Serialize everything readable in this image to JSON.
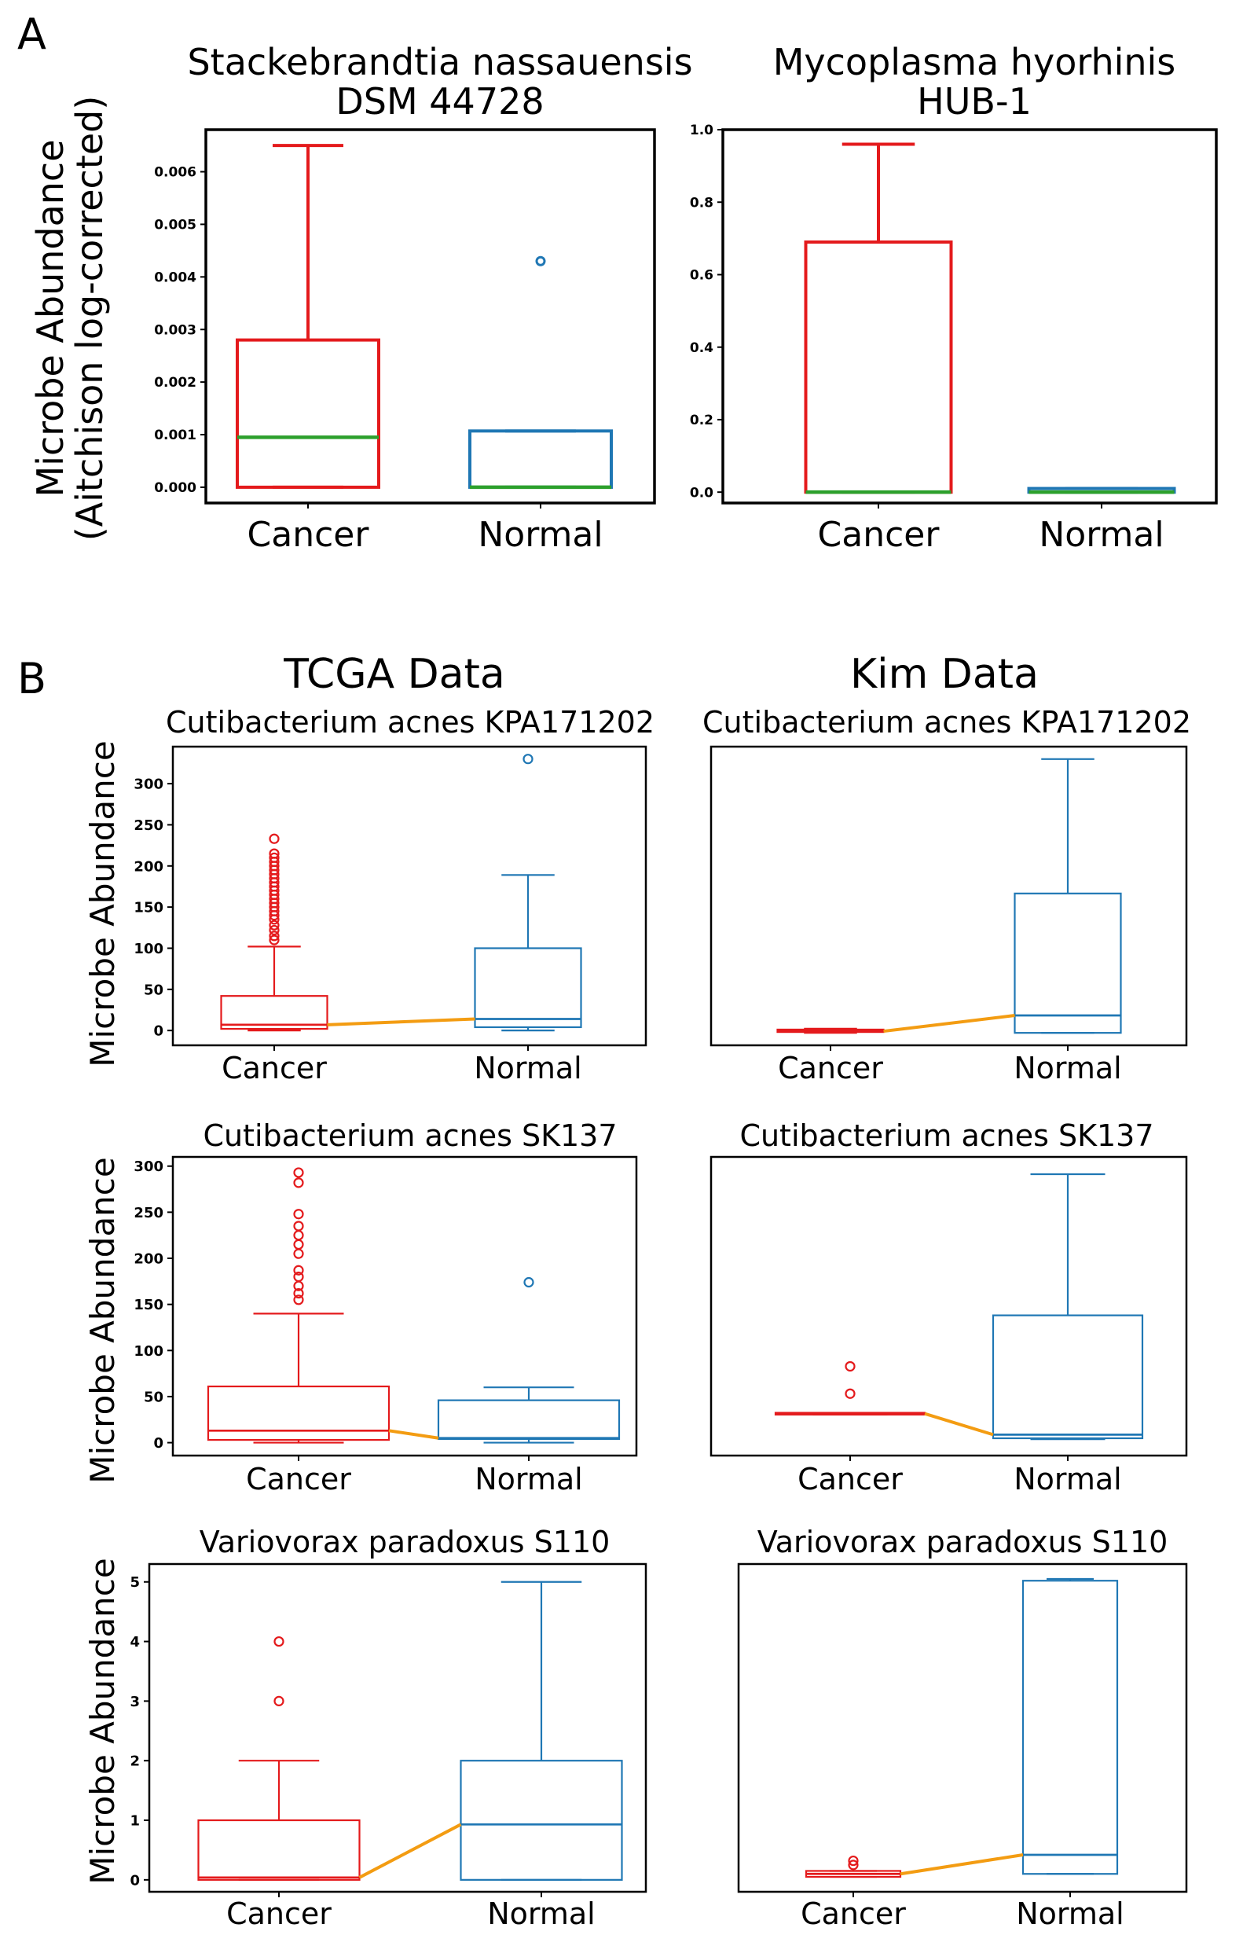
{
  "panel_labels": {
    "a": "A",
    "b": "B"
  },
  "colors": {
    "cancer": "#e41a1c",
    "normal": "#1f77b4",
    "median": "#2ca02c",
    "connector": "#f39c12",
    "tcga": "#1e9a4a",
    "kim": "#f7bcc8"
  },
  "section_headers": {
    "tcga": "TCGA Data",
    "kim": "Kim Data"
  },
  "panel_a_ylabel": [
    "Microbe Abundance",
    "(Aitchison log-corrected)"
  ],
  "panel_b_ylabel": "Microbe Abundance",
  "chart_data": [
    {
      "id": "a1",
      "type": "box",
      "title": [
        "Stackebrandtia nassauensis",
        "DSM 44728"
      ],
      "categories": [
        "Cancer",
        "Normal"
      ],
      "ylim": [
        -0.0003,
        0.0068
      ],
      "yticks": [
        0,
        0.001,
        0.002,
        0.003,
        0.004,
        0.005,
        0.006
      ],
      "tick_labels": [
        "0.000",
        "0.001",
        "0.002",
        "0.003",
        "0.004",
        "0.005",
        "0.006"
      ],
      "boxes": [
        {
          "name": "Cancer",
          "q1": 0,
          "median": 0.00095,
          "q3": 0.0028,
          "whislo": 0,
          "whishi": 0.0065,
          "fliers": []
        },
        {
          "name": "Normal",
          "q1": 0,
          "median": 0,
          "q3": 0.00107,
          "whislo": 0,
          "whishi": 0.00107,
          "fliers": [
            0.0043
          ]
        }
      ],
      "median_color": "green",
      "connector": false
    },
    {
      "id": "a2",
      "type": "box",
      "title": [
        "Mycoplasma hyorhinis",
        "HUB-1"
      ],
      "categories": [
        "Cancer",
        "Normal"
      ],
      "ylim": [
        -0.03,
        1.0
      ],
      "yticks": [
        0,
        0.2,
        0.4,
        0.6,
        0.8,
        1.0
      ],
      "tick_labels": [
        "0.0",
        "0.2",
        "0.4",
        "0.6",
        "0.8",
        "1.0"
      ],
      "boxes": [
        {
          "name": "Cancer",
          "q1": 0,
          "median": 0,
          "q3": 0.69,
          "whislo": 0,
          "whishi": 0.96,
          "fliers": []
        },
        {
          "name": "Normal",
          "q1": 0,
          "median": 0,
          "q3": 0.01,
          "whislo": 0,
          "whishi": 0.01,
          "fliers": []
        }
      ],
      "median_color": "green",
      "connector": false
    },
    {
      "id": "b1",
      "type": "box",
      "title": [
        "Cutibacterium acnes KPA171202"
      ],
      "categories": [
        "Cancer",
        "Normal"
      ],
      "ylim": [
        -18,
        345
      ],
      "yticks": [
        0,
        50,
        100,
        150,
        200,
        250,
        300
      ],
      "tick_labels": [
        "0",
        "50",
        "100",
        "150",
        "200",
        "250",
        "300"
      ],
      "boxes": [
        {
          "name": "Cancer",
          "q1": 2,
          "median": 7,
          "q3": 42,
          "whislo": 0,
          "whishi": 102,
          "fliers": [
            110,
            115,
            122,
            128,
            135,
            140,
            145,
            150,
            155,
            160,
            165,
            170,
            175,
            180,
            185,
            190,
            195,
            200,
            205,
            210,
            215,
            233
          ]
        },
        {
          "name": "Normal",
          "q1": 4,
          "median": 14,
          "q3": 100,
          "whislo": 0,
          "whishi": 189,
          "fliers": [
            330
          ]
        }
      ],
      "median_color": "box",
      "connector": true
    },
    {
      "id": "b2",
      "type": "box",
      "title": [
        "Cutibacterium acnes KPA171202"
      ],
      "categories": [
        "Cancer",
        "Normal"
      ],
      "ylim": [
        -15,
        345
      ],
      "yticks": [],
      "tick_labels": [],
      "boxes": [
        {
          "name": "Cancer",
          "q1": 1,
          "median": 2,
          "q3": 4,
          "whislo": 0,
          "whishi": 5,
          "fliers": []
        },
        {
          "name": "Normal",
          "q1": 0,
          "median": 21,
          "q3": 168,
          "whislo": 0,
          "whishi": 330,
          "fliers": []
        }
      ],
      "median_color": "box",
      "connector": true
    },
    {
      "id": "b3",
      "type": "box",
      "title": [
        "Cutibacterium acnes SK137"
      ],
      "categories": [
        "Cancer",
        "Normal"
      ],
      "ylim": [
        -14,
        310
      ],
      "yticks": [
        0,
        50,
        100,
        150,
        200,
        250,
        300
      ],
      "tick_labels": [
        "0",
        "50",
        "100",
        "150",
        "200",
        "250",
        "300"
      ],
      "boxes": [
        {
          "name": "Cancer",
          "q1": 3,
          "median": 13,
          "q3": 61,
          "whislo": 0,
          "whishi": 140,
          "fliers": [
            155,
            162,
            170,
            180,
            187,
            205,
            215,
            225,
            235,
            248,
            282,
            293
          ]
        },
        {
          "name": "Normal",
          "q1": 4,
          "median": 5,
          "q3": 46,
          "whislo": 0,
          "whishi": 60,
          "fliers": [
            174
          ]
        }
      ],
      "median_color": "box",
      "connector": true
    },
    {
      "id": "b4",
      "type": "box",
      "title": [
        "Cutibacterium acnes SK137"
      ],
      "categories": [
        "Cancer",
        "Normal"
      ],
      "ylim": [
        -18,
        310
      ],
      "yticks": [],
      "tick_labels": [],
      "boxes": [
        {
          "name": "Cancer",
          "q1": 27,
          "median": 28,
          "q3": 29,
          "whislo": 27,
          "whishi": 29,
          "fliers": [
            50,
            80
          ]
        },
        {
          "name": "Normal",
          "q1": 1,
          "median": 5,
          "q3": 136,
          "whislo": 0,
          "whishi": 291,
          "fliers": []
        }
      ],
      "median_color": "box",
      "connector": true
    },
    {
      "id": "b5",
      "type": "box",
      "title": [
        "Variovorax paradoxus S110"
      ],
      "categories": [
        "Cancer",
        "Normal"
      ],
      "ylim": [
        -0.2,
        5.3
      ],
      "yticks": [
        0,
        1,
        2,
        3,
        4,
        5
      ],
      "tick_labels": [
        "0",
        "1",
        "2",
        "3",
        "4",
        "5"
      ],
      "boxes": [
        {
          "name": "Cancer",
          "q1": 0,
          "median": 0.04,
          "q3": 1,
          "whislo": 0,
          "whishi": 2,
          "fliers": [
            3,
            4
          ]
        },
        {
          "name": "Normal",
          "q1": 0,
          "median": 0.93,
          "q3": 2,
          "whislo": 0,
          "whishi": 5,
          "fliers": []
        }
      ],
      "median_color": "box",
      "connector": true
    },
    {
      "id": "b6",
      "type": "box",
      "title": [
        "Variovorax paradoxus S110"
      ],
      "categories": [
        "Cancer",
        "Normal"
      ],
      "ylim": [
        -0.2,
        5.3
      ],
      "yticks": [],
      "tick_labels": [],
      "boxes": [
        {
          "name": "Cancer",
          "q1": 0.05,
          "median": 0.1,
          "q3": 0.15,
          "whislo": 0.05,
          "whishi": 0.15,
          "fliers": [
            0.25,
            0.32
          ]
        },
        {
          "name": "Normal",
          "q1": 0.1,
          "median": 0.42,
          "q3": 5.02,
          "whislo": 0.1,
          "whishi": 5.05,
          "fliers": []
        }
      ],
      "median_color": "box",
      "connector": true
    }
  ]
}
